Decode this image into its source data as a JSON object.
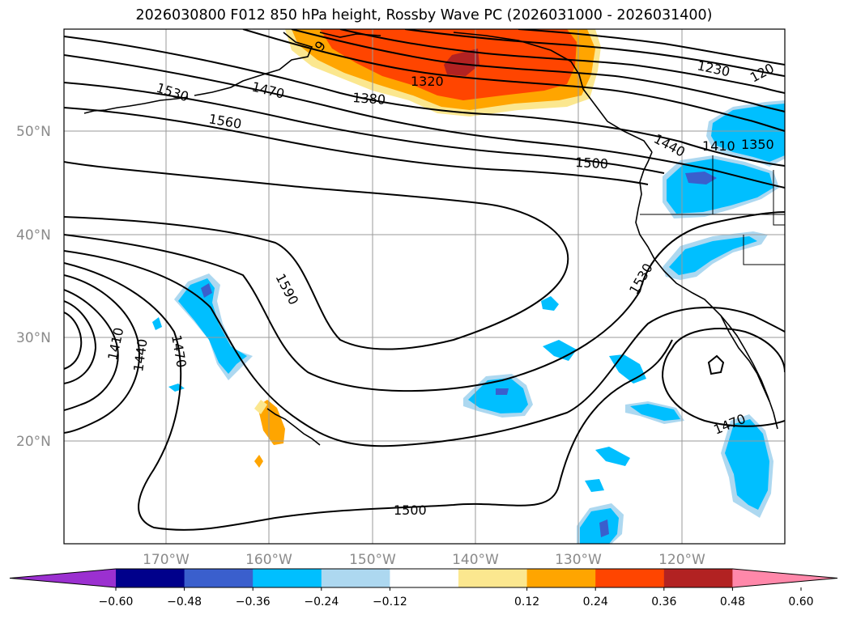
{
  "title": "2026030800 F012 850 hPa height, Rossby Wave PC (2026031000 - 2026031400)",
  "lat_labels": [
    "50°N",
    "40°N",
    "30°N",
    "20°N"
  ],
  "lon_labels": [
    "170°W",
    "160°W",
    "150°W",
    "140°W",
    "130°W",
    "120°W"
  ],
  "contour_labels": [
    "1530",
    "1470",
    "1380",
    "1320",
    "1560",
    "1500",
    "1230",
    "120",
    "1440",
    "1410",
    "1350",
    "1590",
    "1530",
    "1410",
    "1440",
    "1470",
    "1470",
    "1500",
    "9"
  ],
  "colorbar": {
    "ticks": [
      "−0.60",
      "−0.48",
      "−0.36",
      "−0.24",
      "−0.12",
      "0.12",
      "0.24",
      "0.36",
      "0.48",
      "0.60"
    ],
    "colors": [
      "#9b30d0",
      "#00008b",
      "#3a5fcd",
      "#00bfff",
      "#add8f0",
      "#ffffff",
      "#fbe78f",
      "#ffa500",
      "#ff4500",
      "#b22222",
      "#ff88aa"
    ]
  },
  "fill_colors": {
    "warm_light": "#fbe78f",
    "warm_mid": "#ffa500",
    "warm_strong": "#ff4500",
    "warm_max": "#b22222",
    "cool_light": "#add8f0",
    "cool_mid": "#00bfff",
    "cool_strong": "#3a5fcd",
    "cool_max": "#6a2fc0"
  }
}
